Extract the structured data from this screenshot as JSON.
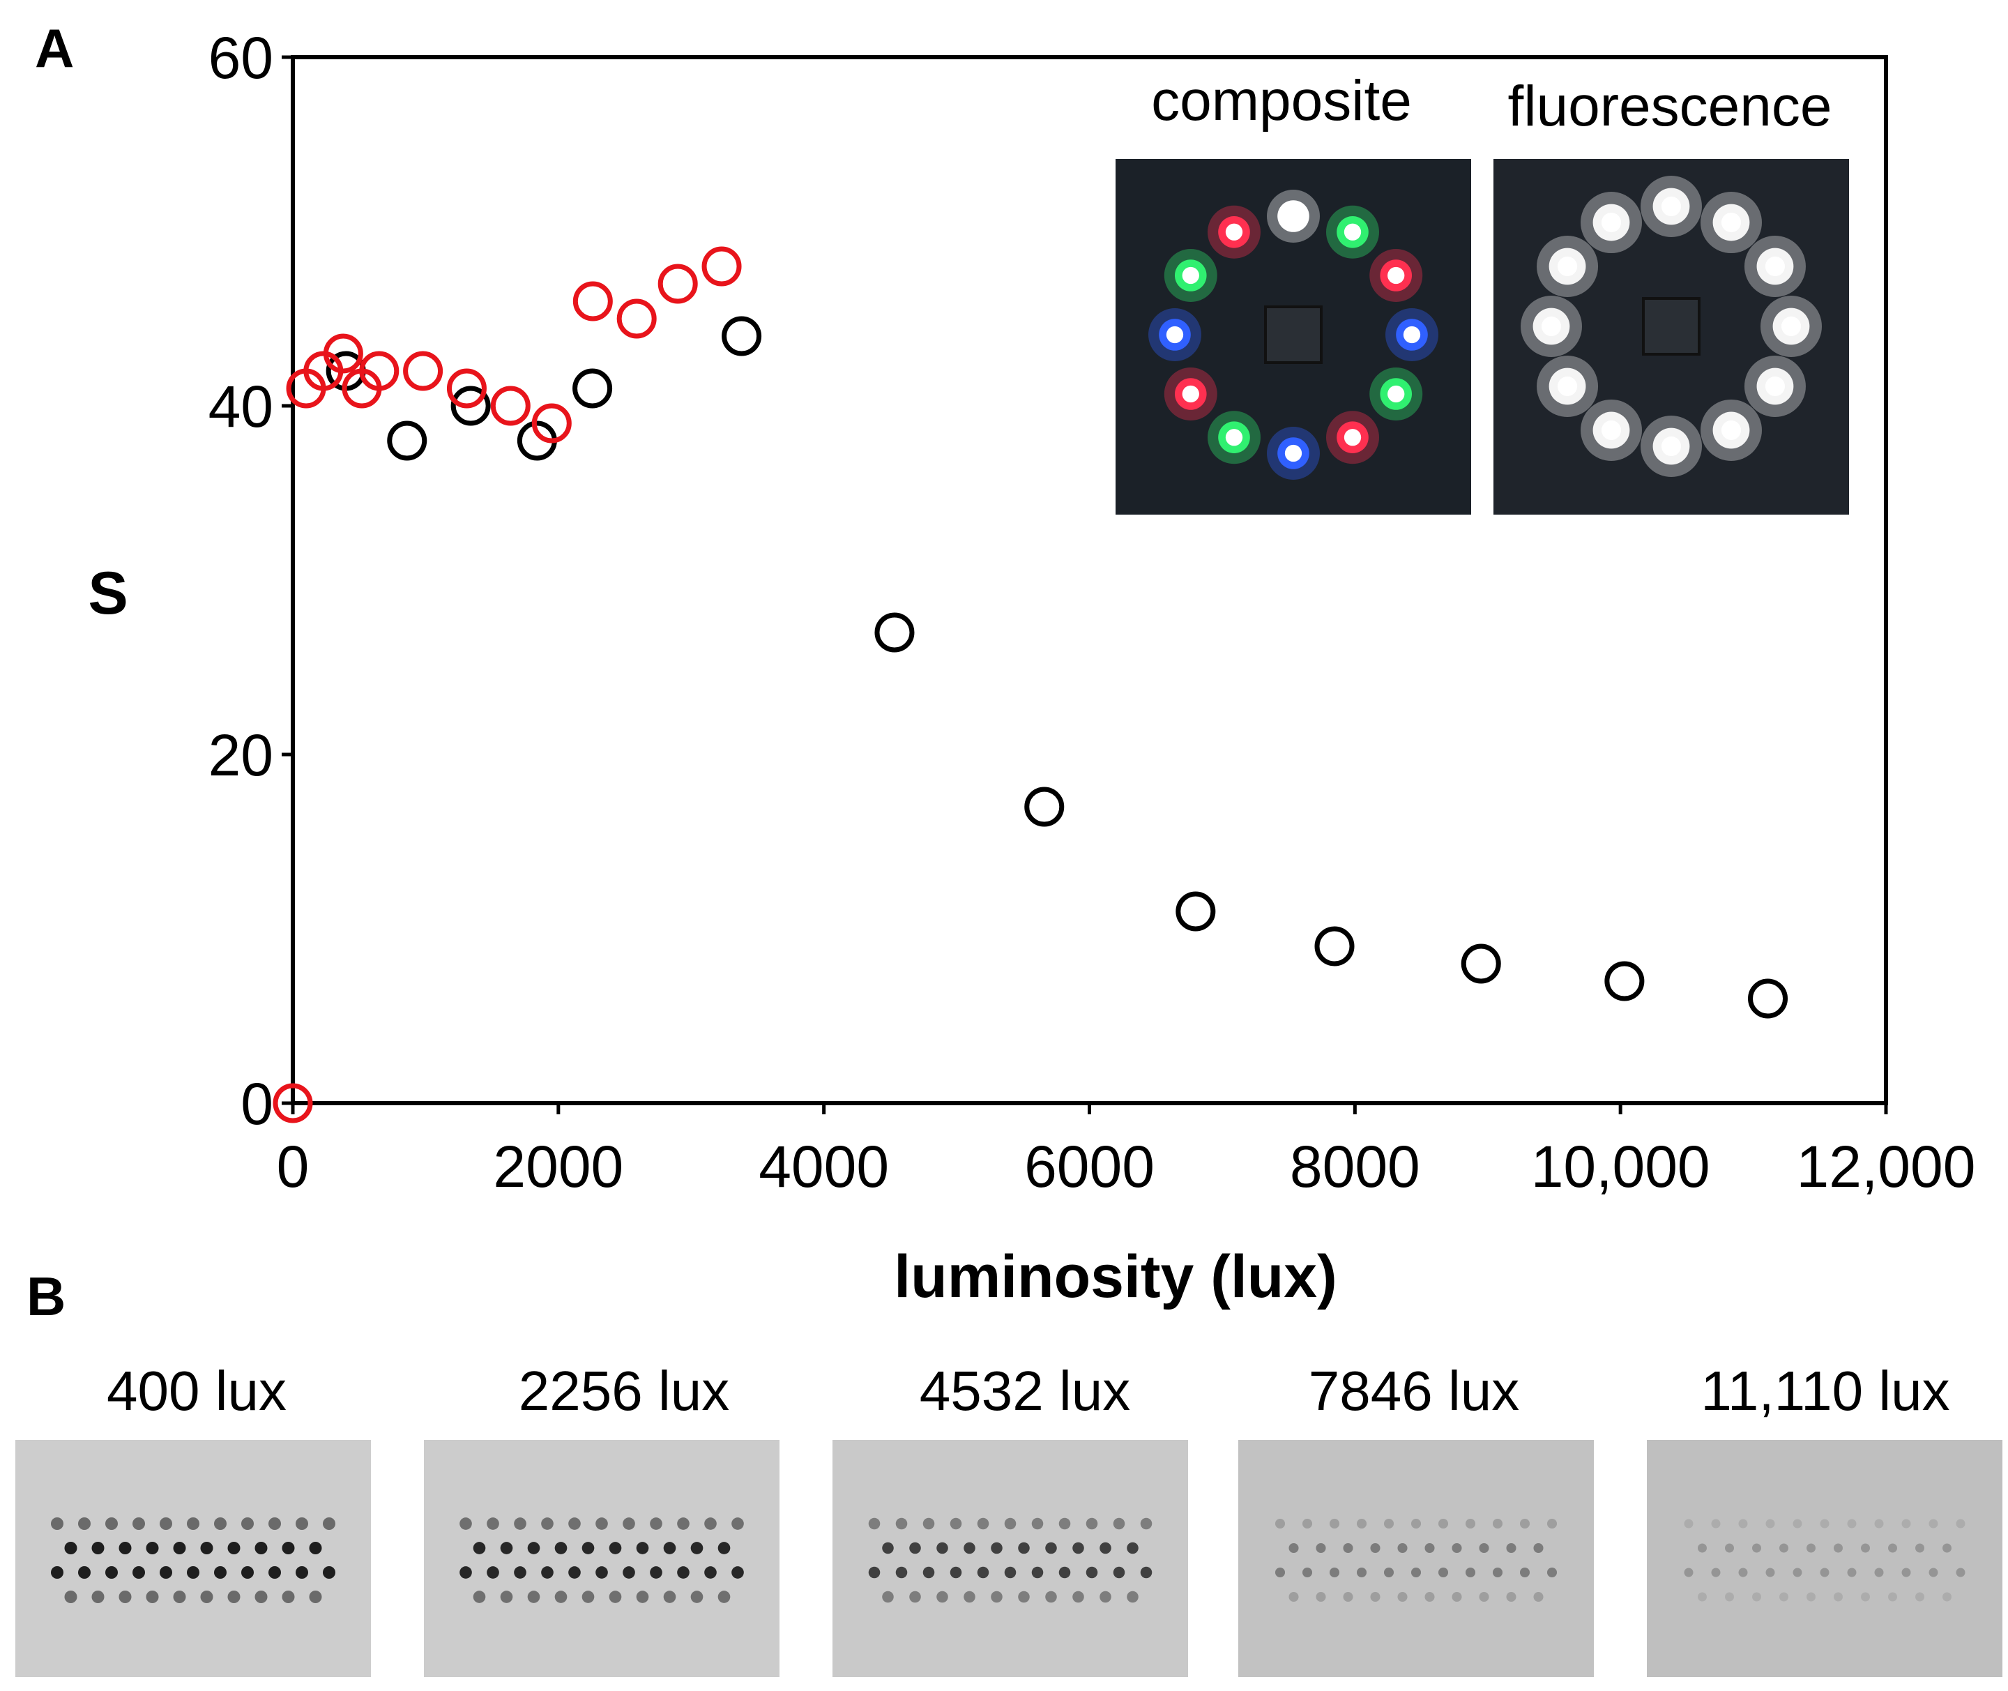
{
  "panel_labels": {
    "a": "A",
    "b": "B"
  },
  "chart_data": {
    "type": "scatter",
    "xlabel": "luminosity (lux)",
    "ylabel": "S",
    "xlim": [
      0,
      12000
    ],
    "ylim": [
      0,
      60
    ],
    "xticks": [
      "0",
      "2000",
      "4000",
      "6000",
      "8000",
      "10,000",
      "12,000"
    ],
    "xtick_values": [
      0,
      2000,
      4000,
      6000,
      8000,
      10000,
      12000
    ],
    "yticks": [
      "0",
      "20",
      "40",
      "60"
    ],
    "ytick_values": [
      0,
      20,
      40,
      60
    ],
    "grid": false,
    "legend": null,
    "series": [
      {
        "color": "#000000",
        "marker": "open-circle",
        "points": [
          {
            "x": 400,
            "y": 42
          },
          {
            "x": 860,
            "y": 38
          },
          {
            "x": 1340,
            "y": 40
          },
          {
            "x": 1840,
            "y": 38
          },
          {
            "x": 2256,
            "y": 41
          },
          {
            "x": 3380,
            "y": 44
          },
          {
            "x": 4532,
            "y": 27
          },
          {
            "x": 5660,
            "y": 17
          },
          {
            "x": 6800,
            "y": 11
          },
          {
            "x": 7846,
            "y": 9
          },
          {
            "x": 8950,
            "y": 8
          },
          {
            "x": 10030,
            "y": 7
          },
          {
            "x": 11110,
            "y": 6
          }
        ]
      },
      {
        "color": "#e8141b",
        "marker": "open-circle",
        "points": [
          {
            "x": 0,
            "y": 0
          },
          {
            "x": 100,
            "y": 41
          },
          {
            "x": 230,
            "y": 42
          },
          {
            "x": 380,
            "y": 43
          },
          {
            "x": 520,
            "y": 41
          },
          {
            "x": 650,
            "y": 42
          },
          {
            "x": 980,
            "y": 42
          },
          {
            "x": 1310,
            "y": 41
          },
          {
            "x": 1640,
            "y": 40
          },
          {
            "x": 1950,
            "y": 39
          },
          {
            "x": 2260,
            "y": 46
          },
          {
            "x": 2590,
            "y": 45
          },
          {
            "x": 2900,
            "y": 47
          },
          {
            "x": 3230,
            "y": 48
          }
        ]
      }
    ]
  },
  "inset": {
    "composite_label": "composite",
    "fluorescence_label": "fluorescence",
    "composite_led_colors": [
      "#ffffff",
      "#30f070",
      "#ff3050",
      "#3060ff",
      "#30f070",
      "#ff3050",
      "#3060ff",
      "#30f070",
      "#ff3050",
      "#3060ff",
      "#30f070",
      "#ff3050"
    ]
  },
  "panel_b": {
    "strips": [
      {
        "label": "400 lux",
        "darkness": 1.0
      },
      {
        "label": "2256 lux",
        "darkness": 0.95
      },
      {
        "label": "4532 lux",
        "darkness": 0.8
      },
      {
        "label": "7846 lux",
        "darkness": 0.45
      },
      {
        "label": "11,110 lux",
        "darkness": 0.3
      }
    ]
  }
}
